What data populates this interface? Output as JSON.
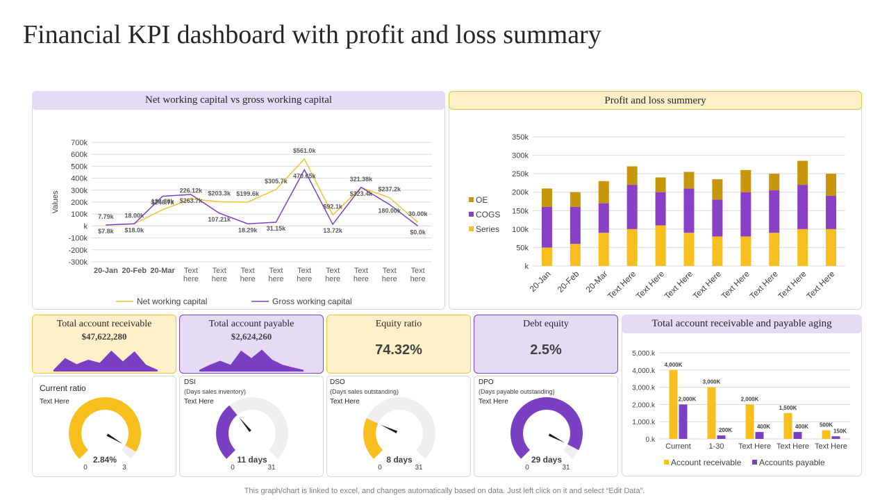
{
  "title": "Financial KPI dashboard with profit and loss summary",
  "footer": "This graph/chart is linked to excel,  and changes automatically based on data. Just left click on it and select “Edit Data”.",
  "colors": {
    "yellow": "#f7bf1e",
    "purple": "#7b3fc4",
    "oe": "#c8960c",
    "cogs": "#8a3fc7"
  },
  "panels": {
    "nwc": "Net working capital vs gross working capital",
    "pl": "Profit and loss summery",
    "aging": "Total account  receivable and payable aging"
  },
  "kpis": {
    "receivable": {
      "title": "Total account receivable",
      "value": "$47,622,280"
    },
    "payable": {
      "title": "Total account payable",
      "value": "$2,624,260"
    },
    "equity": {
      "title": "Equity ratio",
      "value": "74.32%"
    },
    "debt": {
      "title": "Debt equity",
      "value": "2.5%"
    }
  },
  "gauges": {
    "current": {
      "title": "Current ratio",
      "text": "Text Here",
      "value_label": "2.84%",
      "min": "0",
      "max": "3",
      "value": 2.84,
      "max_value": 3,
      "color": "#f7bf1e"
    },
    "dsi": {
      "title": "DSI",
      "subtitle": "(Days sales inventory)",
      "text": "Text Here",
      "value_label": "11 days",
      "min": "0",
      "max": "31",
      "value": 11,
      "max_value": 31,
      "color": "#7b3fc4"
    },
    "dso": {
      "title": "DSO",
      "subtitle": "(Days sales outstanding)",
      "text": "Text Here",
      "value_label": "8 days",
      "min": "0",
      "max": "31",
      "value": 8,
      "max_value": 31,
      "color": "#f7bf1e"
    },
    "dpo": {
      "title": "DPO",
      "subtitle": "(Days payable outstanding)",
      "text": "Text Here",
      "value_label": "29 days",
      "min": "0",
      "max": "31",
      "value": 29,
      "max_value": 31,
      "color": "#7b3fc4"
    }
  },
  "sparks": {
    "receivable": [
      5,
      40,
      22,
      35,
      26,
      62,
      30,
      60,
      20,
      5
    ],
    "payable": [
      5,
      20,
      32,
      20,
      62,
      40,
      65,
      35,
      20,
      12,
      5
    ]
  },
  "chart_data": [
    {
      "type": "line",
      "title": "Net working capital vs gross working capital",
      "ylabel": "Values",
      "ylim": [
        -300,
        700
      ],
      "yticks": [
        "-300k",
        "-200k",
        "-100k",
        "k",
        "100k",
        "200k",
        "300k",
        "400k",
        "500k",
        "600k",
        "700k"
      ],
      "ytick_values": [
        -300,
        -200,
        -100,
        0,
        100,
        200,
        300,
        400,
        500,
        600,
        700
      ],
      "categories": [
        "20-Jan",
        "20-Feb",
        "20-Mar",
        "Text here",
        "Text here",
        "Text here",
        "Text here",
        "Text here",
        "Text here",
        "Text here",
        "Text here",
        "Text here"
      ],
      "series": [
        {
          "name": "Net working capital",
          "color": "#f1c232",
          "values": [
            7.79,
            18.0,
            136.36,
            226.12,
            203.3,
            199.6,
            305.7,
            561.0,
            92.1,
            321.38,
            237.2,
            30.0
          ],
          "labels": [
            "7.79k",
            "18.00k",
            "136.36k",
            "226.12k",
            "$203.3k",
            "$199.6k",
            "$305.7k",
            "$561.0k",
            "$92.1k",
            "321.38k",
            "$237.2k",
            "30.00k"
          ]
        },
        {
          "name": "Gross working capital",
          "color": "#7b3fc4",
          "values": [
            7.8,
            18.0,
            248.7,
            263.7,
            107.21,
            18.29,
            31.15,
            470.65,
            13.72,
            323.4,
            180.0,
            0.0
          ],
          "labels": [
            "$7.8k",
            "$18.0k",
            "$248.7k",
            "$263.7k",
            "107.21k",
            "18.29k",
            "31.15k",
            "470.65k",
            "13.72k",
            "$323.4k",
            "180.00k",
            "$0.0k"
          ]
        }
      ]
    },
    {
      "type": "bar",
      "stacked": true,
      "title": "Profit and loss summery",
      "ylim": [
        0,
        350
      ],
      "yticks": [
        "k",
        "50k",
        "100k",
        "150k",
        "200k",
        "250k",
        "300k",
        "350k"
      ],
      "ytick_values": [
        0,
        50,
        100,
        150,
        200,
        250,
        300,
        350
      ],
      "categories": [
        "20-Jan",
        "20-Feb",
        "20-Mar",
        "Text Here",
        "Text Here",
        "Text Here",
        "Text Here",
        "Text Here",
        "Text Here",
        "Text Here",
        "Text Here"
      ],
      "legend": [
        "OE",
        "COGS",
        "Series"
      ],
      "series": [
        {
          "name": "Series",
          "color": "#f7bf1e",
          "values": [
            50,
            60,
            90,
            100,
            110,
            90,
            80,
            80,
            90,
            100,
            100
          ]
        },
        {
          "name": "COGS",
          "color": "#8a3fc7",
          "values": [
            110,
            100,
            80,
            120,
            90,
            120,
            100,
            120,
            115,
            120,
            90
          ]
        },
        {
          "name": "OE",
          "color": "#c8960c",
          "values": [
            50,
            40,
            60,
            50,
            40,
            45,
            55,
            60,
            45,
            65,
            60
          ]
        }
      ]
    },
    {
      "type": "bar",
      "title": "Total account  receivable and payable aging",
      "ylim": [
        0,
        5000
      ],
      "yticks": [
        "0.k",
        "1,000.k",
        "2,000.k",
        "3,000.k",
        "4,000.k",
        "5,000.k"
      ],
      "ytick_values": [
        0,
        1000,
        2000,
        3000,
        4000,
        5000
      ],
      "categories": [
        "Current",
        "1-30",
        "Text Here",
        "Text Here",
        "Text Here"
      ],
      "series": [
        {
          "name": "Account receivable",
          "color": "#f7bf1e",
          "values": [
            4000,
            3000,
            2000,
            1500,
            500
          ],
          "labels": [
            "4,000K",
            "3,000K",
            "2,000K",
            "1,500K",
            "500K"
          ]
        },
        {
          "name": "Accounts payable",
          "color": "#7b3fc4",
          "values": [
            2000,
            200,
            400,
            400,
            150
          ],
          "labels": [
            "2,000K",
            "200K",
            "400K",
            "400K",
            "150K"
          ]
        }
      ]
    }
  ]
}
